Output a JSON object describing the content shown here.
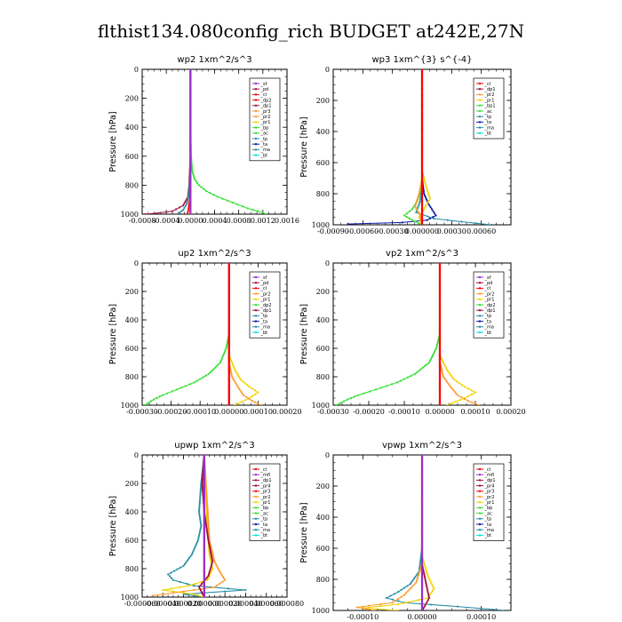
{
  "figure_title": "flthist134.080config_rich  BUDGET at242E,27N",
  "colors": {
    "purple": "#9b30c8",
    "maroon": "#a01040",
    "red": "#ff0000",
    "orange": "#ff9a2e",
    "yellow": "#f2d300",
    "green": "#33e033",
    "darkblue": "#0a1aa0",
    "teal": "#2a8fa8",
    "cyan": "#00e0e0",
    "black": "#000000"
  },
  "chart_data": [
    {
      "type": "line",
      "title": "wp2   1xm^2/s^3",
      "ylabel": "Pressure [hPa]",
      "xlim": [
        -0.0008,
        0.0016
      ],
      "ylim": [
        1000,
        0
      ],
      "xticks": [
        -0.0008,
        -0.0004,
        0.0,
        0.0004,
        0.0008,
        0.0012,
        0.0016
      ],
      "xtick_labels": [
        "-0.0008",
        "-0.0004",
        "0.0000",
        "0.0004",
        "0.0008",
        "0.0012",
        "0.0016"
      ],
      "yticks": [
        0,
        200,
        400,
        600,
        800,
        1000
      ],
      "ytick_labels": [
        "0",
        "200",
        "400",
        "600",
        "800",
        "1000"
      ],
      "legend": [
        "_sf",
        "_pd",
        "_cl",
        "_dp2",
        "_dp1",
        "_pr3",
        "_pr2",
        "_pr1",
        "_bp",
        "_ac",
        "_tp",
        "_ta",
        "_ma",
        "_bt"
      ],
      "legend_colors": [
        "purple",
        "maroon",
        "red",
        "red",
        "maroon",
        "orange",
        "orange",
        "yellow",
        "green",
        "green",
        "teal",
        "darkblue",
        "teal",
        "cyan"
      ],
      "series": [
        {
          "color": "green",
          "pressure": [
            0,
            400,
            600,
            700,
            760,
            800,
            840,
            880,
            920,
            960,
            990,
            1000
          ],
          "values": [
            0.0,
            0.0,
            1e-05,
            3e-05,
            7e-05,
            0.00014,
            0.00026,
            0.00045,
            0.0007,
            0.00095,
            0.0012,
            0.00125
          ]
        },
        {
          "color": "maroon",
          "pressure": [
            0,
            600,
            800,
            880,
            940,
            980,
            995,
            1000
          ],
          "values": [
            0.0,
            0.0,
            -2e-05,
            -4e-05,
            -0.00012,
            -0.0003,
            -0.0006,
            -0.00075
          ]
        },
        {
          "color": "teal",
          "pressure": [
            0,
            700,
            850,
            930,
            970,
            990,
            1000
          ],
          "values": [
            0.0,
            0.0,
            -2e-05,
            -6e-05,
            -0.00012,
            -0.00018,
            -0.0002
          ]
        },
        {
          "color": "red",
          "pressure": [
            0,
            800,
            900,
            960,
            1000
          ],
          "values": [
            0.0,
            0.0,
            -1e-05,
            -3e-05,
            -5e-05
          ]
        },
        {
          "color": "purple",
          "pressure": [
            0,
            1000
          ],
          "values": [
            0.0,
            0.0
          ]
        }
      ]
    },
    {
      "type": "line",
      "title": "wp3   1xm^{3} s^{-4}",
      "ylabel": "Pressure [hPa]",
      "xlim": [
        -0.0009,
        0.0009
      ],
      "ylim": [
        1000,
        0
      ],
      "xticks": [
        -0.0009,
        -0.0006,
        -0.0003,
        0.0,
        0.0003,
        0.0006
      ],
      "xtick_labels": [
        "-0.00090",
        "-0.00060",
        "-0.00030",
        "0.000000",
        "0.00030",
        "0.00060"
      ],
      "yticks": [
        0,
        200,
        400,
        600,
        800,
        1000
      ],
      "ytick_labels": [
        "0",
        "200",
        "400",
        "600",
        "800",
        "1000"
      ],
      "legend": [
        "_cl",
        "_dp1",
        "_pr2",
        "_pr1",
        "_bp1",
        "_ac",
        "_tp",
        "_ta",
        "_ma",
        "_bt"
      ],
      "legend_colors": [
        "red",
        "maroon",
        "orange",
        "yellow",
        "green",
        "green",
        "teal",
        "darkblue",
        "teal",
        "cyan"
      ],
      "series": [
        {
          "color": "darkblue",
          "pressure": [
            0,
            700,
            800,
            860,
            900,
            940,
            970,
            985,
            995
          ],
          "values": [
            0.0,
            0.0,
            2e-05,
            6e-05,
            0.0001,
            0.00014,
            5e-05,
            -0.0002,
            -0.00075
          ]
        },
        {
          "color": "teal",
          "pressure": [
            0,
            750,
            850,
            920,
            960,
            980,
            1000
          ],
          "values": [
            0.0,
            0.0,
            -2e-05,
            -6e-05,
            0.00012,
            0.0004,
            0.0007
          ]
        },
        {
          "color": "green",
          "pressure": [
            0,
            750,
            850,
            900,
            940,
            970,
            1000
          ],
          "values": [
            0.0,
            0.0,
            -5e-05,
            -0.0001,
            -0.00018,
            -0.0001,
            0.0
          ]
        },
        {
          "color": "yellow",
          "pressure": [
            0,
            650,
            750,
            830,
            900,
            950,
            1000
          ],
          "values": [
            0.0,
            0.0,
            4e-05,
            8e-05,
            2e-05,
            -3e-05,
            0.0
          ]
        },
        {
          "color": "orange",
          "pressure": [
            0,
            700,
            800,
            880,
            940,
            1000
          ],
          "values": [
            0.0,
            0.0,
            -3e-05,
            -7e-05,
            -2e-05,
            0.0
          ]
        },
        {
          "color": "red",
          "pressure": [
            0,
            1000
          ],
          "values": [
            0.0,
            0.0
          ]
        }
      ]
    },
    {
      "type": "line",
      "title": "up2   1xm^2/s^3",
      "ylabel": "Pressure [hPa]",
      "xlim": [
        -0.0003,
        0.0002
      ],
      "ylim": [
        1000,
        0
      ],
      "xticks": [
        -0.0003,
        -0.0002,
        -0.0001,
        0.0,
        0.0001,
        0.0002
      ],
      "xtick_labels": [
        "-0.00030",
        "-0.00020",
        "-0.00010",
        "0.00000",
        "0.00010",
        "0.00020"
      ],
      "yticks": [
        0,
        200,
        400,
        600,
        800,
        1000
      ],
      "ytick_labels": [
        "0",
        "200",
        "400",
        "600",
        "800",
        "1000"
      ],
      "legend": [
        "_sf",
        "_pd",
        "_cl",
        "_pr2",
        "_pr1",
        "_dp2",
        "_dp1",
        "_tp",
        "_ta",
        "_ma",
        "_bt"
      ],
      "legend_colors": [
        "purple",
        "maroon",
        "red",
        "orange",
        "yellow",
        "green",
        "maroon",
        "teal",
        "darkblue",
        "teal",
        "cyan"
      ],
      "series": [
        {
          "color": "green",
          "pressure": [
            0,
            500,
            600,
            700,
            780,
            840,
            890,
            930,
            960,
            985,
            1000
          ],
          "values": [
            0.0,
            0.0,
            -1e-05,
            -3e-05,
            -7e-05,
            -0.00012,
            -0.00018,
            -0.00023,
            -0.00026,
            -0.00028,
            -0.00029
          ]
        },
        {
          "color": "yellow",
          "pressure": [
            0,
            650,
            750,
            820,
            870,
            910,
            950,
            1000
          ],
          "values": [
            0.0,
            0.0,
            2e-05,
            4e-05,
            7e-05,
            0.0001,
            7e-05,
            2e-05
          ]
        },
        {
          "color": "orange",
          "pressure": [
            0,
            700,
            800,
            870,
            930,
            970,
            1000
          ],
          "values": [
            0.0,
            0.0,
            1e-05,
            3e-05,
            5e-05,
            8e-05,
            0.00011
          ]
        },
        {
          "color": "maroon",
          "pressure": [
            0,
            1000
          ],
          "values": [
            0.0,
            0.0
          ]
        },
        {
          "color": "red",
          "pressure": [
            0,
            1000
          ],
          "values": [
            0.0,
            0.0
          ]
        }
      ]
    },
    {
      "type": "line",
      "title": "vp2   1xm^2/s^3",
      "ylabel": "Pressure [hPa]",
      "xlim": [
        -0.0003,
        0.0002
      ],
      "ylim": [
        1000,
        0
      ],
      "xticks": [
        -0.0003,
        -0.0002,
        -0.0001,
        0.0,
        0.0001,
        0.0002
      ],
      "xtick_labels": [
        "-0.00030",
        "-0.00020",
        "-0.00010",
        "0.00000",
        "0.00010",
        "0.00020"
      ],
      "yticks": [
        0,
        200,
        400,
        600,
        800,
        1000
      ],
      "ytick_labels": [
        "0",
        "200",
        "400",
        "600",
        "800",
        "1000"
      ],
      "legend": [
        "_sf",
        "_pd",
        "_cl",
        "_pr2",
        "_pr1",
        "_dp2",
        "_dp1",
        "_tp",
        "_ta",
        "_ma",
        "_bt"
      ],
      "legend_colors": [
        "purple",
        "maroon",
        "red",
        "orange",
        "yellow",
        "green",
        "maroon",
        "teal",
        "darkblue",
        "teal",
        "cyan"
      ],
      "series": [
        {
          "color": "green",
          "pressure": [
            0,
            500,
            600,
            700,
            780,
            840,
            890,
            930,
            960,
            985,
            1000
          ],
          "values": [
            0.0,
            0.0,
            -1e-05,
            -3e-05,
            -7e-05,
            -0.00012,
            -0.00018,
            -0.00023,
            -0.00026,
            -0.00028,
            -0.00029
          ]
        },
        {
          "color": "yellow",
          "pressure": [
            0,
            650,
            750,
            820,
            870,
            910,
            950,
            1000
          ],
          "values": [
            0.0,
            0.0,
            2e-05,
            4e-05,
            7e-05,
            0.0001,
            7e-05,
            2e-05
          ]
        },
        {
          "color": "orange",
          "pressure": [
            0,
            700,
            800,
            870,
            930,
            970,
            1000
          ],
          "values": [
            0.0,
            0.0,
            1e-05,
            3e-05,
            5e-05,
            8e-05,
            0.00011
          ]
        },
        {
          "color": "maroon",
          "pressure": [
            0,
            1000
          ],
          "values": [
            0.0,
            0.0
          ]
        },
        {
          "color": "red",
          "pressure": [
            0,
            1000
          ],
          "values": [
            0.0,
            0.0
          ]
        }
      ]
    },
    {
      "type": "line",
      "title": "upwp   1xm^2/s^3",
      "ylabel": "Pressure [hPa]",
      "xlim": [
        -6e-05,
        8e-05
      ],
      "ylim": [
        1000,
        0
      ],
      "xticks": [
        -6e-05,
        -4e-05,
        -2e-05,
        0.0,
        2e-05,
        4e-05,
        6e-05,
        8e-05
      ],
      "xtick_labels": [
        "-0.000060",
        "-0.000040",
        "-0.000020",
        "0.000000",
        "0.000020",
        "0.000040",
        "0.000060",
        "0.000080"
      ],
      "yticks": [
        0,
        200,
        400,
        600,
        800,
        1000
      ],
      "ytick_labels": [
        "0",
        "200",
        "400",
        "600",
        "800",
        "1000"
      ],
      "legend": [
        "_cl",
        "_mfl",
        "_dp1",
        "_pr4",
        "_pr3",
        "_pr2",
        "_pr1",
        "_bp",
        "_ac",
        "_tp",
        "_ta",
        "_ma",
        "_bt"
      ],
      "legend_colors": [
        "red",
        "purple",
        "maroon",
        "maroon",
        "red",
        "orange",
        "yellow",
        "green",
        "green",
        "teal",
        "darkblue",
        "teal",
        "cyan"
      ],
      "series": [
        {
          "color": "teal",
          "pressure": [
            0,
            200,
            400,
            500,
            600,
            700,
            780,
            840,
            880,
            920,
            950,
            980,
            1000
          ],
          "values": [
            0.0,
            -3e-06,
            -5e-06,
            -3e-06,
            -6e-06,
            -1.2e-05,
            -2e-05,
            -3.5e-05,
            -3e-05,
            -1e-05,
            4e-05,
            -2e-05,
            0.0
          ]
        },
        {
          "color": "yellow",
          "pressure": [
            0,
            500,
            700,
            800,
            880,
            920,
            950,
            980,
            1000
          ],
          "values": [
            0.0,
            3e-06,
            5e-06,
            8e-06,
            3e-06,
            -1.5e-05,
            -4e-05,
            -1e-05,
            0.0
          ]
        },
        {
          "color": "orange",
          "pressure": [
            0,
            600,
            750,
            820,
            880,
            930,
            960,
            990
          ],
          "values": [
            0.0,
            5e-06,
            1e-05,
            1.5e-05,
            2e-05,
            1e-05,
            -2e-05,
            -5e-05
          ]
        },
        {
          "color": "maroon",
          "pressure": [
            0,
            200,
            400,
            600,
            750,
            850,
            930,
            1000
          ],
          "values": [
            0.0,
            -2e-06,
            0.0,
            4e-06,
            8e-06,
            4e-06,
            -5e-06,
            0.0
          ]
        },
        {
          "color": "red",
          "pressure": [
            0,
            1000
          ],
          "values": [
            0.0,
            0.0
          ]
        },
        {
          "color": "purple",
          "pressure": [
            0,
            1000
          ],
          "values": [
            0.0,
            0.0
          ]
        }
      ]
    },
    {
      "type": "line",
      "title": "vpwp   1xm^2/s^3",
      "ylabel": "Pressure [hPa]",
      "xlim": [
        -0.00015,
        0.00015
      ],
      "ylim": [
        1000,
        0
      ],
      "xticks": [
        -0.0001,
        0.0,
        0.0001
      ],
      "xtick_labels": [
        "-0.00010",
        "0.00000",
        "0.00010"
      ],
      "yticks": [
        0,
        200,
        400,
        600,
        800,
        1000
      ],
      "ytick_labels": [
        "0",
        "200",
        "400",
        "600",
        "800",
        "1000"
      ],
      "legend": [
        "_cl",
        "_mfl",
        "_dp1",
        "_pr4",
        "_pr3",
        "_pr2",
        "_pr1",
        "_bp",
        "_ac",
        "_tp",
        "_ta",
        "_ma",
        "_bt"
      ],
      "legend_colors": [
        "red",
        "purple",
        "maroon",
        "maroon",
        "red",
        "orange",
        "yellow",
        "green",
        "green",
        "teal",
        "darkblue",
        "teal",
        "cyan"
      ],
      "series": [
        {
          "color": "teal",
          "pressure": [
            0,
            600,
            750,
            830,
            880,
            920,
            950,
            975,
            1000
          ],
          "values": [
            0.0,
            0.0,
            -5e-06,
            -2e-05,
            -4e-05,
            -6e-05,
            -3e-05,
            6e-05,
            0.00014
          ]
        },
        {
          "color": "yellow",
          "pressure": [
            0,
            650,
            780,
            860,
            920,
            960,
            985,
            1000
          ],
          "values": [
            0.0,
            0.0,
            1e-05,
            2e-05,
            1e-05,
            -4e-05,
            -0.0001,
            -4e-05
          ]
        },
        {
          "color": "orange",
          "pressure": [
            0,
            700,
            820,
            900,
            950,
            980,
            1000
          ],
          "values": [
            0.0,
            0.0,
            -1e-05,
            -3e-05,
            -5e-05,
            -0.00011,
            -8e-05
          ]
        },
        {
          "color": "maroon",
          "pressure": [
            0,
            700,
            850,
            920,
            970,
            1000
          ],
          "values": [
            0.0,
            0.0,
            8e-06,
            1.2e-05,
            5e-06,
            0.0
          ]
        },
        {
          "color": "red",
          "pressure": [
            0,
            1000
          ],
          "values": [
            0.0,
            0.0
          ]
        },
        {
          "color": "purple",
          "pressure": [
            0,
            1000
          ],
          "values": [
            0.0,
            0.0
          ]
        }
      ]
    }
  ]
}
